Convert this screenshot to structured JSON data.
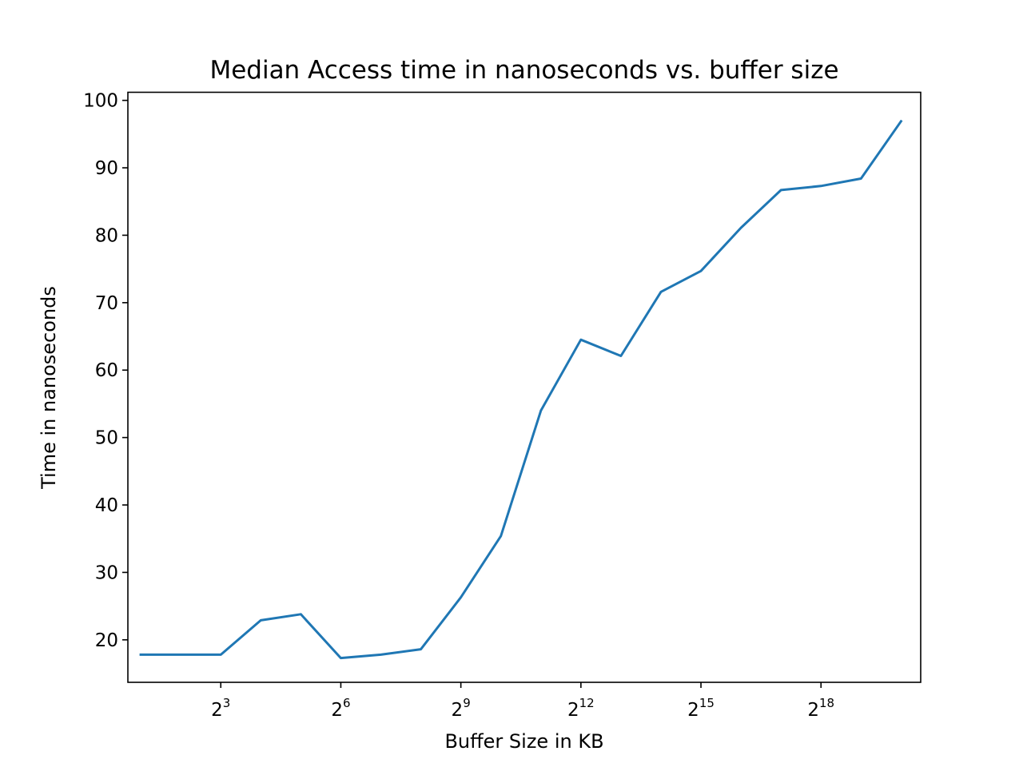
{
  "chart_data": {
    "type": "line",
    "title": "Median Access time in nanoseconds vs. buffer size",
    "xlabel": "Buffer Size in KB",
    "ylabel": "Time in nanoseconds",
    "x_scale": "log2",
    "x_ticks": [
      {
        "base": "2",
        "exp": "3",
        "value": 8
      },
      {
        "base": "2",
        "exp": "6",
        "value": 64
      },
      {
        "base": "2",
        "exp": "9",
        "value": 512
      },
      {
        "base": "2",
        "exp": "12",
        "value": 4096
      },
      {
        "base": "2",
        "exp": "15",
        "value": 32768
      },
      {
        "base": "2",
        "exp": "18",
        "value": 262144
      }
    ],
    "y_ticks": [
      "20",
      "30",
      "40",
      "50",
      "60",
      "70",
      "80",
      "90",
      "100"
    ],
    "xlim": [
      1.6,
      1474560
    ],
    "ylim": [
      13.7,
      101.2
    ],
    "grid": false,
    "series": [
      {
        "color": "#1f77b4",
        "x": [
          2,
          4,
          8,
          16,
          32,
          64,
          128,
          256,
          512,
          1024,
          2048,
          4096,
          8192,
          16384,
          32768,
          65536,
          131072,
          262144,
          524288,
          1048576
        ],
        "y": [
          17.8,
          17.8,
          17.8,
          22.9,
          23.8,
          17.3,
          17.8,
          18.6,
          26.3,
          35.4,
          54.0,
          64.5,
          62.1,
          71.6,
          74.7,
          81.1,
          86.7,
          87.3,
          88.4,
          96.9
        ]
      }
    ]
  }
}
